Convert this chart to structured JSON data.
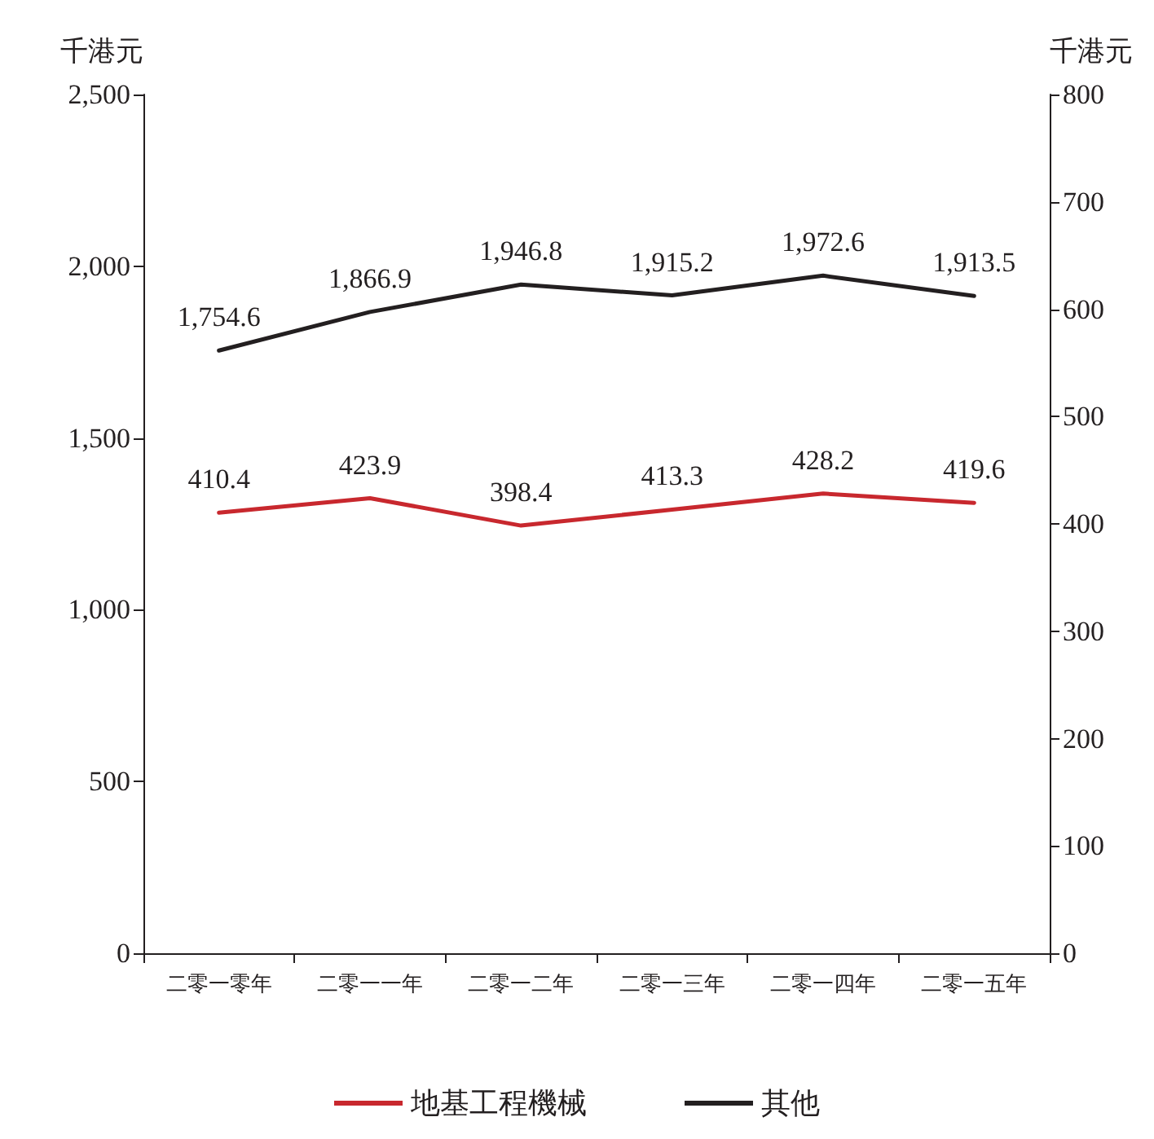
{
  "chart_data": {
    "type": "line",
    "ylabel": "千港元",
    "y2label": "千港元",
    "categories": [
      "二零一零年",
      "二零一一年",
      "二零一二年",
      "二零一三年",
      "二零一四年",
      "二零一五年"
    ],
    "series": [
      {
        "name": "地基工程機械",
        "color": "#c8282e",
        "axis": "y2",
        "values": [
          410.4,
          423.9,
          398.4,
          413.3,
          428.2,
          419.6
        ],
        "value_labels": [
          "410.4",
          "423.9",
          "398.4",
          "413.3",
          "428.2",
          "419.6"
        ]
      },
      {
        "name": "其他",
        "color": "#231f20",
        "values": [
          1754.6,
          1866.9,
          1946.8,
          1915.2,
          1972.6,
          1913.5
        ],
        "value_labels": [
          "1,754.6",
          "1,866.9",
          "1,946.8",
          "1,915.2",
          "1,972.6",
          "1,913.5"
        ]
      }
    ],
    "ylim": [
      0,
      2500
    ],
    "yticks": [
      0,
      500,
      {
        "value": 1000,
        "label": "1,000"
      },
      {
        "value": 1500,
        "label": "1,500"
      },
      {
        "value": 2000,
        "label": "2,000"
      },
      {
        "value": 2500,
        "label": "2,500"
      }
    ],
    "y2lim": [
      0,
      800
    ],
    "y2ticks": [
      0,
      100,
      200,
      300,
      400,
      500,
      600,
      700,
      800
    ],
    "grid": false,
    "legend": "bottom",
    "marker": "none",
    "line_style": "solid"
  }
}
